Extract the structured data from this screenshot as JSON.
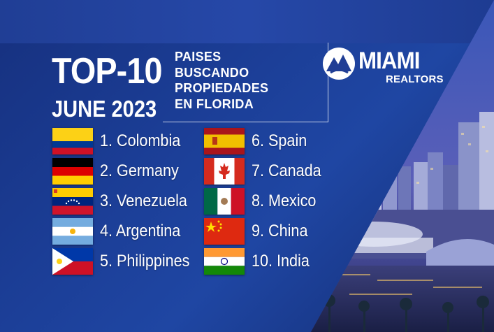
{
  "header": {
    "title": "TOP-10",
    "date": "JUNE 2023",
    "subtitle_lines": [
      "PAISES",
      "BUSCANDO",
      "PROPIEDADES",
      "EN FLORIDA"
    ]
  },
  "logo": {
    "name": "MIAMI",
    "sub": "REALTORS",
    "icon": "miami-realtors-logo-icon"
  },
  "countries": [
    {
      "label": "1. Colombia",
      "flag": "colombia-flag-icon"
    },
    {
      "label": "2. Germany",
      "flag": "germany-flag-icon"
    },
    {
      "label": "3. Venezuela",
      "flag": "venezuela-flag-icon"
    },
    {
      "label": "4. Argentina",
      "flag": "argentina-flag-icon"
    },
    {
      "label": "5. Philippines",
      "flag": "philippines-flag-icon"
    },
    {
      "label": "6. Spain",
      "flag": "spain-flag-icon"
    },
    {
      "label": "7. Canada",
      "flag": "canada-flag-icon"
    },
    {
      "label": "8. Mexico",
      "flag": "mexico-flag-icon"
    },
    {
      "label": "9. China",
      "flag": "china-flag-icon"
    },
    {
      "label": "10. India",
      "flag": "india-flag-icon"
    }
  ],
  "colors": {
    "background": "#1b3d95",
    "text": "#ffffff"
  }
}
